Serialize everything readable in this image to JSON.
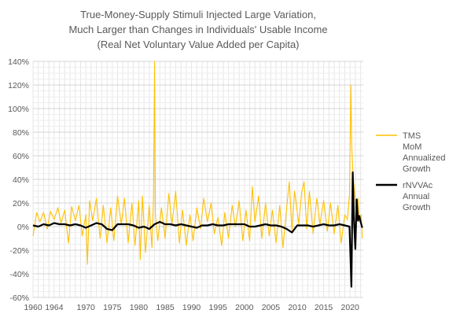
{
  "chart_data": {
    "type": "line",
    "title": [
      "True-Money-Supply Stimuli Injected Large Variation,",
      "Much Larger than Changes in Individuals' Usable Income",
      "(Real Net Voluntary Value Added per Capita)"
    ],
    "xlabel": "",
    "ylabel": "",
    "xlim": [
      1960,
      2022.5
    ],
    "ylim": [
      -60,
      140
    ],
    "y_ticks": [
      "140%",
      "120%",
      "100%",
      "80%",
      "60%",
      "40%",
      "20%",
      "0%",
      "-20%",
      "-40%",
      "-60%"
    ],
    "x_ticks": [
      "1960",
      "1964",
      "1970",
      "1975",
      "1980",
      "1985",
      "1990",
      "1995",
      "2000",
      "2005",
      "2010",
      "2015",
      "2020"
    ],
    "grid": true,
    "legend_position": "right",
    "series": [
      {
        "name": "TMS MoM Annualized Growth",
        "legend_lines": [
          "TMS",
          "MoM",
          "Annualized",
          "Growth"
        ],
        "color": "#FFC000",
        "points": [
          [
            1960,
            -8
          ],
          [
            1960.7,
            12
          ],
          [
            1961.3,
            4
          ],
          [
            1962,
            12
          ],
          [
            1962.7,
            -2
          ],
          [
            1963.3,
            13
          ],
          [
            1964,
            6
          ],
          [
            1964.7,
            16
          ],
          [
            1965.3,
            3
          ],
          [
            1966,
            14
          ],
          [
            1966.7,
            -14
          ],
          [
            1967.3,
            17
          ],
          [
            1968,
            5
          ],
          [
            1968.7,
            18
          ],
          [
            1969.3,
            -8
          ],
          [
            1970,
            10
          ],
          [
            1970.3,
            -32
          ],
          [
            1970.7,
            22
          ],
          [
            1971.3,
            5
          ],
          [
            1972,
            24
          ],
          [
            1972.7,
            -10
          ],
          [
            1973.3,
            18
          ],
          [
            1974,
            -14
          ],
          [
            1974.7,
            16
          ],
          [
            1975.3,
            -12
          ],
          [
            1976,
            26
          ],
          [
            1976.7,
            2
          ],
          [
            1977.3,
            24
          ],
          [
            1978,
            -14
          ],
          [
            1978.7,
            20
          ],
          [
            1979.3,
            -16
          ],
          [
            1980,
            22
          ],
          [
            1980.3,
            -28
          ],
          [
            1980.7,
            26
          ],
          [
            1981.3,
            -22
          ],
          [
            1982,
            18
          ],
          [
            1982.5,
            -18
          ],
          [
            1982.8,
            24
          ],
          [
            1983.0,
            140
          ],
          [
            1983.15,
            10
          ],
          [
            1983.6,
            -12
          ],
          [
            1984.3,
            16
          ],
          [
            1985,
            -10
          ],
          [
            1985.7,
            28
          ],
          [
            1986.3,
            2
          ],
          [
            1987,
            30
          ],
          [
            1987.7,
            -14
          ],
          [
            1988.3,
            14
          ],
          [
            1989,
            -16
          ],
          [
            1989.7,
            10
          ],
          [
            1990.3,
            -12
          ],
          [
            1991,
            16
          ],
          [
            1991.7,
            -2
          ],
          [
            1992.3,
            24
          ],
          [
            1993,
            4
          ],
          [
            1993.7,
            20
          ],
          [
            1994.3,
            -6
          ],
          [
            1995,
            8
          ],
          [
            1995.7,
            -16
          ],
          [
            1996.3,
            12
          ],
          [
            1997,
            -10
          ],
          [
            1997.7,
            18
          ],
          [
            1998.3,
            0
          ],
          [
            1999,
            22
          ],
          [
            1999.7,
            -12
          ],
          [
            2000.3,
            14
          ],
          [
            2001,
            -12
          ],
          [
            2001.5,
            34
          ],
          [
            2002,
            4
          ],
          [
            2002.7,
            26
          ],
          [
            2003.3,
            -10
          ],
          [
            2004,
            20
          ],
          [
            2004.7,
            -8
          ],
          [
            2005.3,
            14
          ],
          [
            2006,
            -14
          ],
          [
            2006.7,
            18
          ],
          [
            2007.3,
            -18
          ],
          [
            2008,
            16
          ],
          [
            2008.5,
            38
          ],
          [
            2009,
            -4
          ],
          [
            2009.5,
            30
          ],
          [
            2010.3,
            2
          ],
          [
            2010.8,
            28
          ],
          [
            2011.3,
            38
          ],
          [
            2011.8,
            -2
          ],
          [
            2012.3,
            30
          ],
          [
            2013,
            -6
          ],
          [
            2013.7,
            24
          ],
          [
            2014.3,
            2
          ],
          [
            2015,
            22
          ],
          [
            2015.7,
            -4
          ],
          [
            2016.3,
            20
          ],
          [
            2017,
            -6
          ],
          [
            2017.7,
            18
          ],
          [
            2018.3,
            -14
          ],
          [
            2019,
            10
          ],
          [
            2019.5,
            6
          ],
          [
            2019.9,
            28
          ],
          [
            2020.15,
            120
          ],
          [
            2020.3,
            70
          ],
          [
            2020.6,
            40
          ],
          [
            2020.9,
            28
          ],
          [
            2021.2,
            12
          ],
          [
            2021.5,
            24
          ],
          [
            2021.8,
            4
          ],
          [
            2022.1,
            10
          ],
          [
            2022.3,
            -10
          ]
        ]
      },
      {
        "name": "rNVVAc Annual Growth",
        "legend_lines": [
          "rNVVAc",
          "Annual",
          "Growth"
        ],
        "color": "#000000",
        "points": [
          [
            1960,
            1
          ],
          [
            1961,
            0
          ],
          [
            1962,
            2
          ],
          [
            1963,
            1
          ],
          [
            1964,
            3
          ],
          [
            1965,
            2
          ],
          [
            1966,
            2
          ],
          [
            1967,
            1
          ],
          [
            1968,
            2
          ],
          [
            1969,
            1
          ],
          [
            1970,
            -1
          ],
          [
            1971,
            1
          ],
          [
            1972,
            3
          ],
          [
            1973,
            2
          ],
          [
            1974,
            -2
          ],
          [
            1975,
            -3
          ],
          [
            1976,
            2
          ],
          [
            1977,
            2
          ],
          [
            1978,
            2
          ],
          [
            1979,
            1
          ],
          [
            1980,
            -1
          ],
          [
            1981,
            0
          ],
          [
            1982,
            -2
          ],
          [
            1983,
            2
          ],
          [
            1984,
            4
          ],
          [
            1985,
            2
          ],
          [
            1986,
            2
          ],
          [
            1987,
            1
          ],
          [
            1988,
            2
          ],
          [
            1989,
            1
          ],
          [
            1990,
            0
          ],
          [
            1991,
            -1
          ],
          [
            1992,
            1
          ],
          [
            1993,
            1
          ],
          [
            1994,
            2
          ],
          [
            1995,
            1
          ],
          [
            1996,
            1
          ],
          [
            1997,
            2
          ],
          [
            1998,
            2
          ],
          [
            1999,
            2
          ],
          [
            2000,
            2
          ],
          [
            2001,
            0
          ],
          [
            2002,
            0
          ],
          [
            2003,
            1
          ],
          [
            2004,
            2
          ],
          [
            2005,
            1
          ],
          [
            2006,
            1
          ],
          [
            2007,
            0
          ],
          [
            2008,
            -2
          ],
          [
            2009,
            -5
          ],
          [
            2010,
            1
          ],
          [
            2011,
            1
          ],
          [
            2012,
            1
          ],
          [
            2013,
            0
          ],
          [
            2014,
            1
          ],
          [
            2015,
            2
          ],
          [
            2016,
            1
          ],
          [
            2017,
            1
          ],
          [
            2018,
            2
          ],
          [
            2019,
            1
          ],
          [
            2019.9,
            0
          ],
          [
            2020.25,
            -51
          ],
          [
            2020.5,
            46
          ],
          [
            2020.75,
            5
          ],
          [
            2021.0,
            -19
          ],
          [
            2021.25,
            23
          ],
          [
            2021.5,
            5
          ],
          [
            2021.75,
            9
          ],
          [
            2022.0,
            4
          ],
          [
            2022.3,
            -1
          ]
        ]
      }
    ]
  }
}
